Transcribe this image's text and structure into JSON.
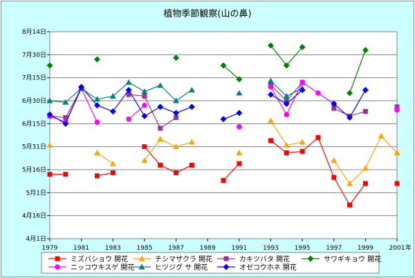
{
  "chart_data": {
    "type": "line",
    "title": "植物季節観察(山の鼻)",
    "x_unit": "年",
    "x_ticks": [
      1979,
      1981,
      1983,
      1985,
      1987,
      1989,
      1991,
      1993,
      1995,
      1997,
      1999,
      2001
    ],
    "xlim": [
      1979,
      2001
    ],
    "y_ticks": [
      {
        "day": 0,
        "label": "4月1日"
      },
      {
        "day": 15,
        "label": "4月16日"
      },
      {
        "day": 30,
        "label": "5月1日"
      },
      {
        "day": 45,
        "label": "5月16日"
      },
      {
        "day": 60,
        "label": "5月31日"
      },
      {
        "day": 75,
        "label": "6月15日"
      },
      {
        "day": 90,
        "label": "6月30日"
      },
      {
        "day": 105,
        "label": "7月15日"
      },
      {
        "day": 120,
        "label": "7月30日"
      },
      {
        "day": 135,
        "label": "8月14日"
      }
    ],
    "ylim": [
      0,
      135
    ],
    "y_value_note": "days after 4月1日",
    "legend_position": "bottom",
    "series": [
      {
        "name": "ミズバショウ 開花",
        "color": "#ff0000",
        "marker": "square",
        "values": [
          [
            1979,
            42
          ],
          [
            1980,
            42
          ],
          [
            1982,
            41
          ],
          [
            1983,
            43
          ],
          [
            1985,
            60
          ],
          [
            1986,
            48
          ],
          [
            1987,
            43
          ],
          [
            1988,
            48
          ],
          [
            1990,
            38
          ],
          [
            1991,
            49
          ],
          [
            1993,
            64
          ],
          [
            1994,
            56
          ],
          [
            1995,
            57
          ],
          [
            1996,
            66
          ],
          [
            1997,
            40
          ],
          [
            1998,
            22
          ],
          [
            1999,
            36
          ],
          [
            2001,
            36
          ]
        ]
      },
      {
        "name": "チシマザクラ 開花",
        "color": "#ffa500",
        "marker": "triangle",
        "values": [
          [
            1979,
            61
          ],
          [
            1982,
            56
          ],
          [
            1983,
            49
          ],
          [
            1985,
            51
          ],
          [
            1986,
            65
          ],
          [
            1987,
            60
          ],
          [
            1988,
            63
          ],
          [
            1991,
            56
          ],
          [
            1993,
            77
          ],
          [
            1994,
            61
          ],
          [
            1995,
            63
          ],
          [
            1997,
            51
          ],
          [
            1998,
            36
          ],
          [
            1999,
            46
          ],
          [
            2000,
            67
          ],
          [
            2001,
            56
          ]
        ]
      },
      {
        "name": "カキツバタ 開花",
        "color": "#993399",
        "marker": "square",
        "values": [
          [
            1979,
            80
          ],
          [
            1980,
            79
          ],
          [
            1981,
            98
          ],
          [
            1984,
            94
          ],
          [
            1985,
            93
          ],
          [
            1986,
            72
          ],
          [
            1987,
            79
          ],
          [
            1993,
            100
          ],
          [
            1994,
            90
          ],
          [
            1995,
            102
          ],
          [
            1997,
            85
          ],
          [
            1998,
            80
          ],
          [
            1999,
            83
          ],
          [
            2001,
            86
          ]
        ]
      },
      {
        "name": "サワギキョウ 開花",
        "color": "#008000",
        "marker": "diamond",
        "values": [
          [
            1979,
            113
          ],
          [
            1982,
            117
          ],
          [
            1987,
            118
          ],
          [
            1990,
            113
          ],
          [
            1991,
            104
          ],
          [
            1993,
            126
          ],
          [
            1994,
            113
          ],
          [
            1995,
            125
          ],
          [
            1998,
            95
          ],
          [
            1999,
            123
          ]
        ]
      },
      {
        "name": "ニッコウキスゲ 開花",
        "color": "#ff00ff",
        "marker": "circle",
        "values": [
          [
            1979,
            80
          ],
          [
            1980,
            76
          ],
          [
            1981,
            98
          ],
          [
            1982,
            76
          ],
          [
            1984,
            78
          ],
          [
            1985,
            87
          ],
          [
            1991,
            73
          ],
          [
            1993,
            99
          ],
          [
            1994,
            81
          ],
          [
            1995,
            102
          ],
          [
            1996,
            95
          ],
          [
            1997,
            88
          ],
          [
            2001,
            84
          ]
        ]
      },
      {
        "name": "ヒツジグ サ 開花",
        "color": "#008080",
        "marker": "triangle",
        "values": [
          [
            1979,
            90
          ],
          [
            1980,
            89
          ],
          [
            1981,
            98
          ],
          [
            1982,
            91
          ],
          [
            1983,
            93
          ],
          [
            1984,
            102
          ],
          [
            1985,
            96
          ],
          [
            1986,
            100
          ],
          [
            1987,
            90
          ],
          [
            1988,
            97
          ],
          [
            1991,
            95
          ],
          [
            1993,
            103
          ],
          [
            1994,
            93
          ],
          [
            1995,
            98
          ]
        ]
      },
      {
        "name": "オゼコウホネ 開花",
        "color": "#0000ff",
        "marker": "diamond",
        "values": [
          [
            1979,
            81
          ],
          [
            1980,
            75
          ],
          [
            1981,
            99
          ],
          [
            1982,
            87
          ],
          [
            1983,
            83
          ],
          [
            1984,
            97
          ],
          [
            1985,
            80
          ],
          [
            1986,
            86
          ],
          [
            1987,
            82
          ],
          [
            1988,
            86
          ],
          [
            1990,
            78
          ],
          [
            1991,
            82
          ],
          [
            1993,
            94
          ],
          [
            1994,
            88
          ],
          [
            1995,
            97
          ],
          [
            1997,
            88
          ],
          [
            1998,
            79
          ],
          [
            1999,
            97
          ]
        ]
      }
    ]
  }
}
